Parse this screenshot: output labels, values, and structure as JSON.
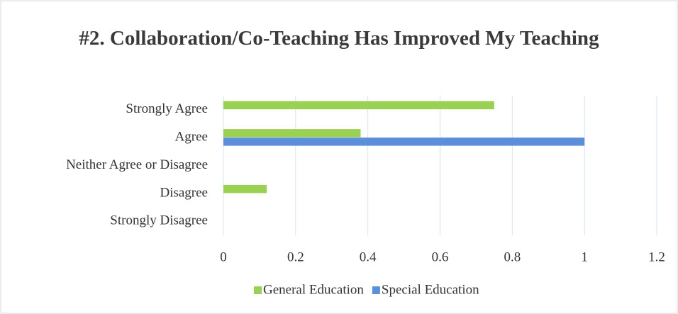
{
  "chart_data": {
    "type": "bar",
    "orientation": "horizontal",
    "title": "#2. Collaboration/Co-Teaching Has Improved My Teaching",
    "categories": [
      "Strongly Agree",
      "Agree",
      "Neither Agree or Disagree",
      "Disagree",
      "Strongly Disagree"
    ],
    "series": [
      {
        "name": "General Education",
        "color": "#9bd152",
        "values": [
          0.75,
          0.38,
          0,
          0.12,
          0
        ]
      },
      {
        "name": "Special Education",
        "color": "#5b8fd9",
        "values": [
          0,
          1,
          0,
          0,
          0
        ]
      }
    ],
    "xlim": [
      0,
      1.2
    ],
    "xticks": [
      0,
      0.2,
      0.4,
      0.6,
      0.8,
      1,
      1.2
    ],
    "grid": true,
    "legend": "bottom"
  }
}
